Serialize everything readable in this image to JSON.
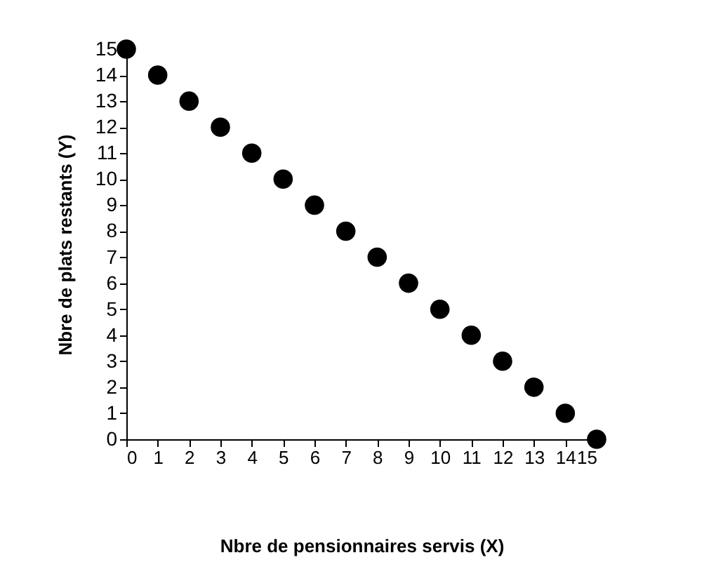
{
  "chart_data": {
    "type": "scatter",
    "xlabel": "Nbre de pensionnaires servis (X)",
    "ylabel": "Nbre de plats restants (Y)",
    "x": [
      0,
      1,
      2,
      3,
      4,
      5,
      6,
      7,
      8,
      9,
      10,
      11,
      12,
      13,
      14,
      15
    ],
    "series": [
      {
        "color": "#000000",
        "values": [
          15,
          14,
          13,
          12,
          11,
          10,
          9,
          8,
          7,
          6,
          5,
          4,
          3,
          2,
          1,
          0
        ]
      }
    ],
    "xlim": [
      0,
      15
    ],
    "xticks": [
      0,
      1,
      2,
      3,
      4,
      5,
      6,
      7,
      8,
      9,
      10,
      11,
      12,
      13,
      14,
      15
    ],
    "ylim": [
      0,
      15
    ],
    "yticks": [
      0,
      1,
      2,
      3,
      4,
      5,
      6,
      7,
      8,
      9,
      10,
      11,
      12,
      13,
      14,
      15
    ],
    "grid": false,
    "marker": "circle"
  }
}
